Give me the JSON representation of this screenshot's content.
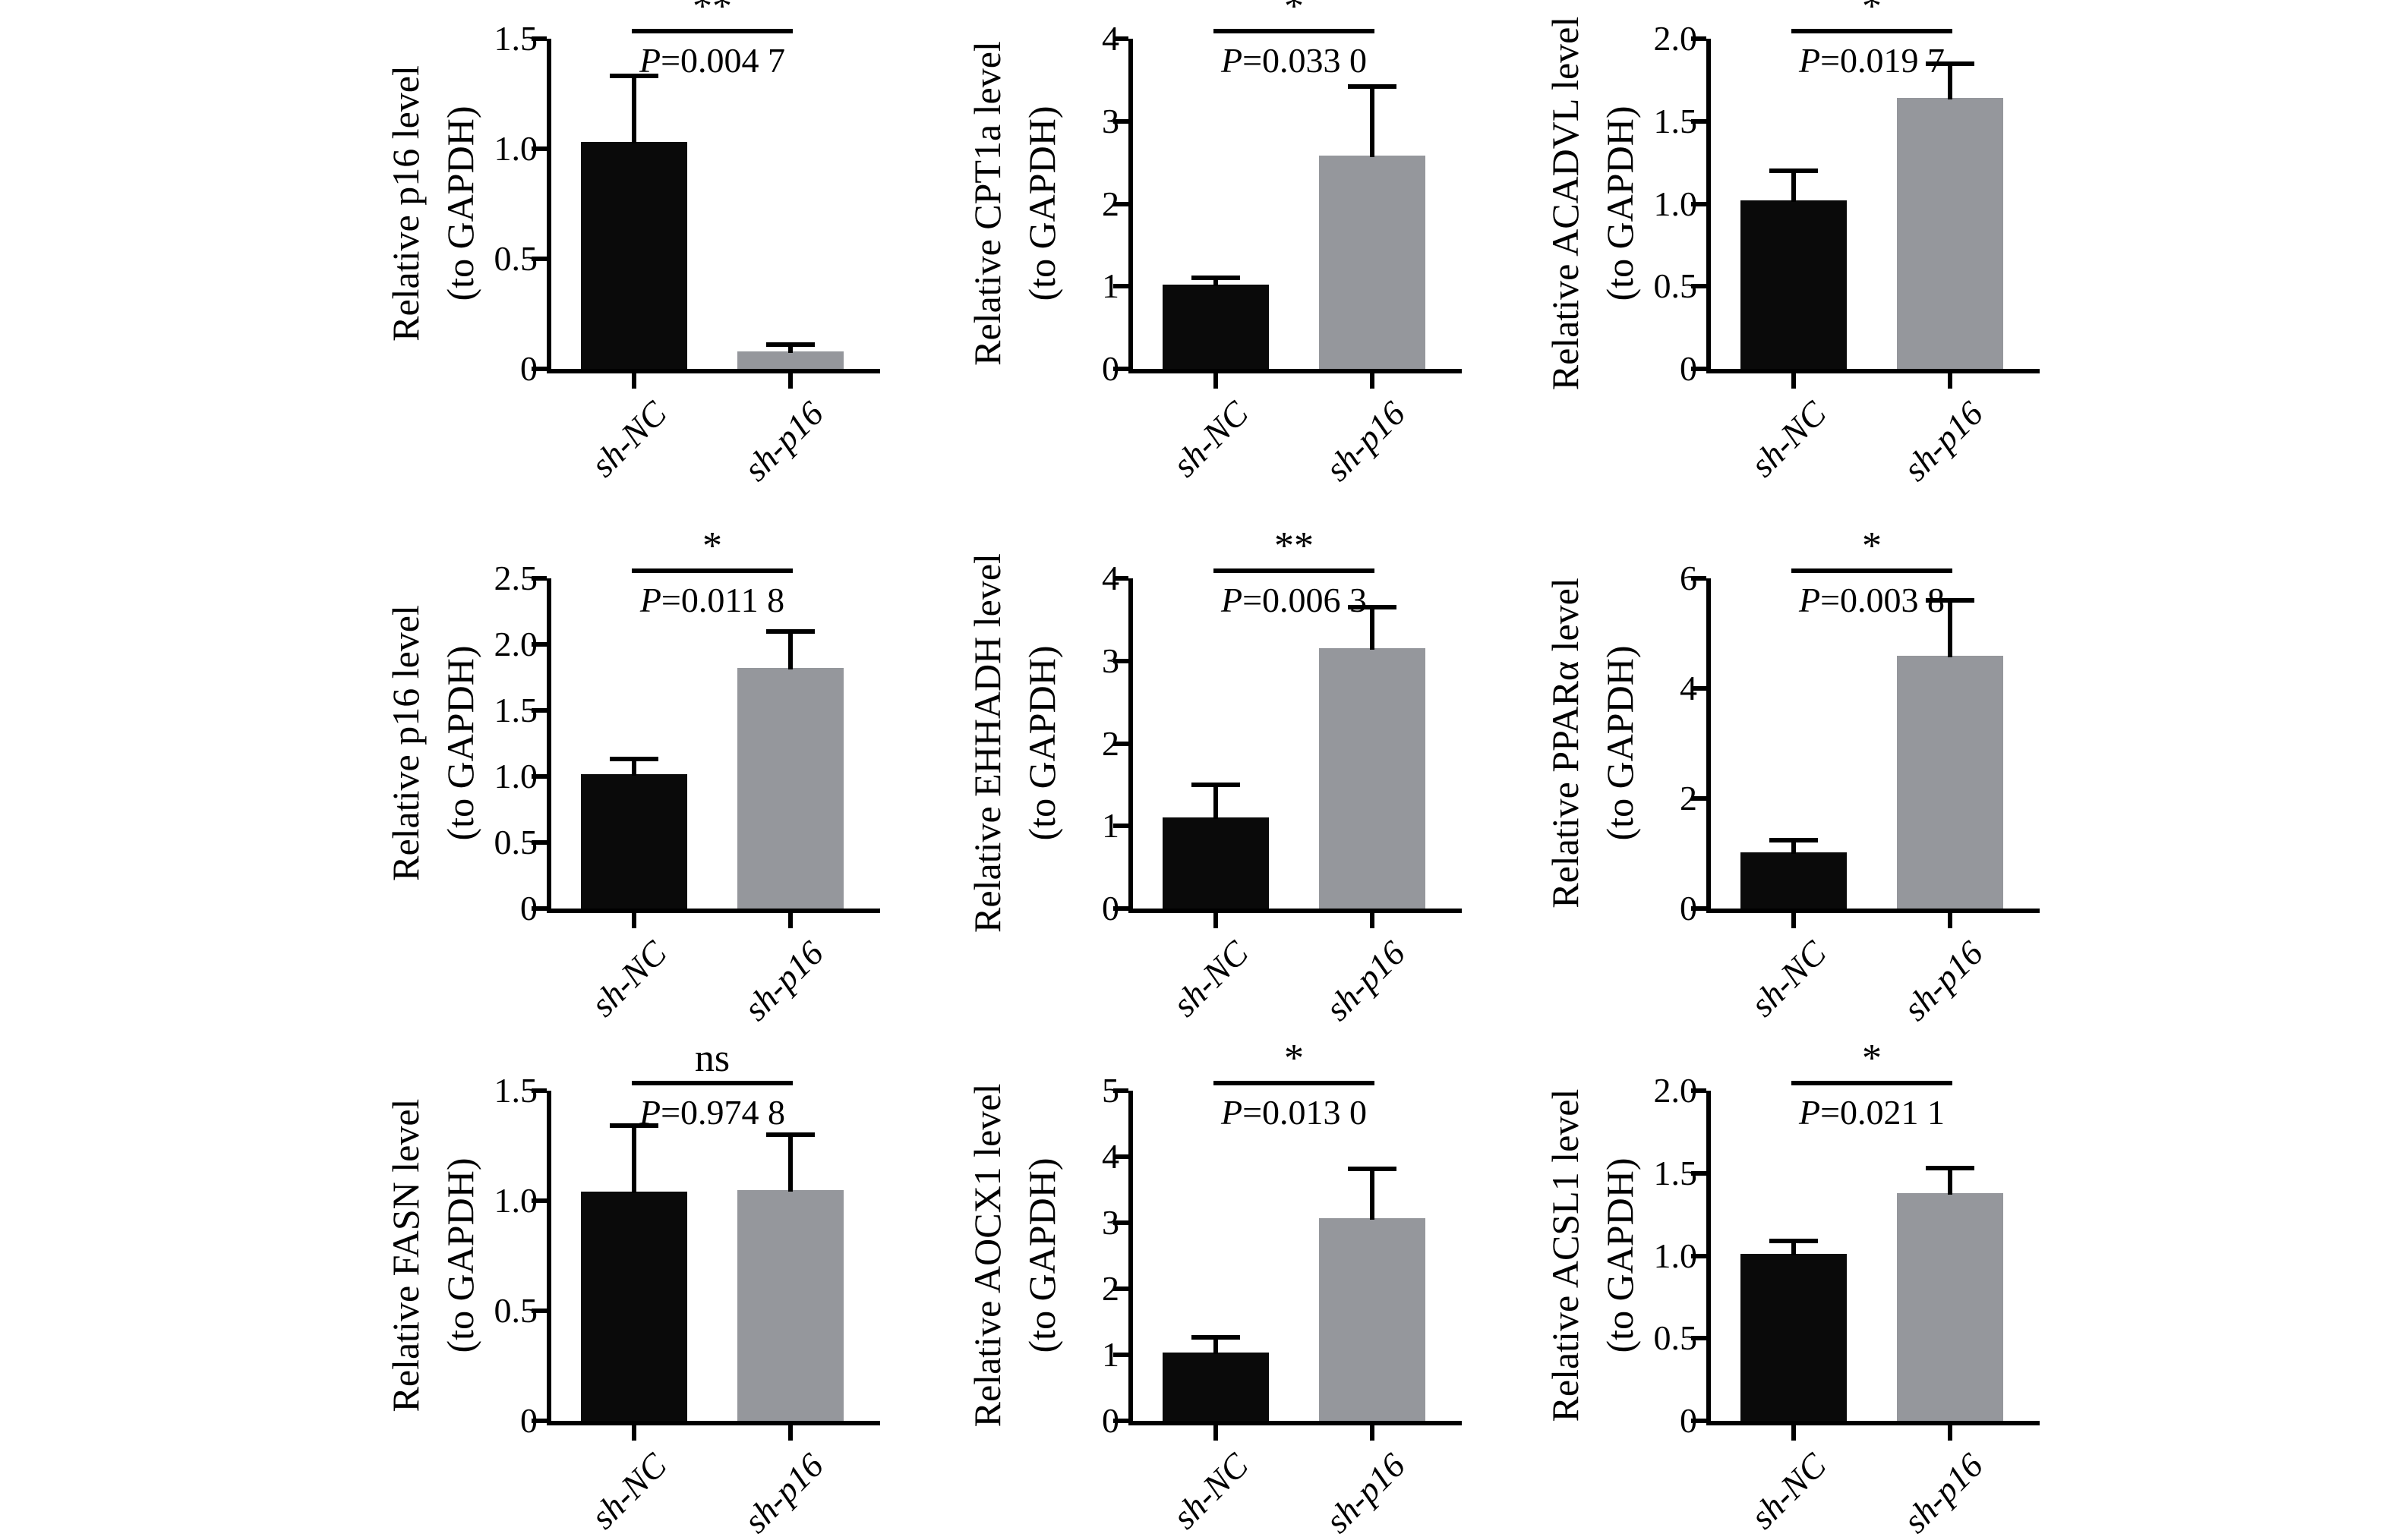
{
  "figure": {
    "description": "3x3 grid of qPCR bar charts comparing sh-NC and sh-p16 groups",
    "background": "#ffffff"
  },
  "colors": {
    "bar_sh_nc": "#0a0a0a",
    "bar_sh_p16": "#95979c",
    "axis": "#000000",
    "text": "#000000"
  },
  "chart_data": [
    {
      "type": "bar",
      "gene": "p16",
      "ylabel_line1": "Relative p16 level",
      "ylabel_line2": "(to GAPDH)",
      "significance": "**",
      "p_prefix": "P",
      "p_value": "=0.004 7",
      "categories": [
        "sh-NC",
        "sh-p16"
      ],
      "values": [
        1.03,
        0.08
      ],
      "errors_plus": [
        0.3,
        0.03
      ],
      "ylim": [
        0,
        1.5
      ],
      "grid": false,
      "legend": "none",
      "yticks": [
        {
          "v": 0,
          "label": "0"
        },
        {
          "v": 0.5,
          "label": "0.5"
        },
        {
          "v": 1,
          "label": "1.0"
        },
        {
          "v": 1.5,
          "label": "1.5"
        }
      ]
    },
    {
      "type": "bar",
      "gene": "CPT1a",
      "ylabel_line1": "Relative CPT1a level",
      "ylabel_line2": "(to GAPDH)",
      "significance": "*",
      "p_prefix": "P",
      "p_value": "=0.033 0",
      "categories": [
        "sh-NC",
        "sh-p16"
      ],
      "values": [
        1.02,
        2.58
      ],
      "errors_plus": [
        0.08,
        0.84
      ],
      "ylim": [
        0,
        4
      ],
      "grid": false,
      "legend": "none",
      "yticks": [
        {
          "v": 0,
          "label": "0"
        },
        {
          "v": 1,
          "label": "1"
        },
        {
          "v": 2,
          "label": "2"
        },
        {
          "v": 3,
          "label": "3"
        },
        {
          "v": 4,
          "label": "4"
        }
      ]
    },
    {
      "type": "bar",
      "gene": "ACADVL",
      "ylabel_line1": "Relative ACADVL level",
      "ylabel_line2": "(to GAPDH)",
      "significance": "*",
      "p_prefix": "P",
      "p_value": "=0.019 7",
      "categories": [
        "sh-NC",
        "sh-p16"
      ],
      "values": [
        1.02,
        1.64
      ],
      "errors_plus": [
        0.18,
        0.21
      ],
      "ylim": [
        0,
        2
      ],
      "grid": false,
      "legend": "none",
      "yticks": [
        {
          "v": 0,
          "label": "0"
        },
        {
          "v": 0.5,
          "label": "0.5"
        },
        {
          "v": 1,
          "label": "1.0"
        },
        {
          "v": 1.5,
          "label": "1.5"
        },
        {
          "v": 2,
          "label": "2.0"
        }
      ]
    },
    {
      "type": "bar",
      "gene": "p16",
      "ylabel_line1": "Relative p16 level",
      "ylabel_line2": "(to GAPDH)",
      "significance": "*",
      "p_prefix": "P",
      "p_value": "=0.011 8",
      "categories": [
        "sh-NC",
        "sh-p16"
      ],
      "values": [
        1.02,
        1.82
      ],
      "errors_plus": [
        0.11,
        0.28
      ],
      "ylim": [
        0,
        2.5
      ],
      "grid": false,
      "legend": "none",
      "yticks": [
        {
          "v": 0,
          "label": "0"
        },
        {
          "v": 0.5,
          "label": "0.5"
        },
        {
          "v": 1,
          "label": "1.0"
        },
        {
          "v": 1.5,
          "label": "1.5"
        },
        {
          "v": 2,
          "label": "2.0"
        },
        {
          "v": 2.5,
          "label": "2.5"
        }
      ]
    },
    {
      "type": "bar",
      "gene": "EHHADH",
      "ylabel_line1": "Relative EHHADH level",
      "ylabel_line2": "(to GAPDH)",
      "significance": "**",
      "p_prefix": "P",
      "p_value": "=0.006 3",
      "categories": [
        "sh-NC",
        "sh-p16"
      ],
      "values": [
        1.1,
        3.15
      ],
      "errors_plus": [
        0.4,
        0.5
      ],
      "ylim": [
        0,
        4
      ],
      "grid": false,
      "legend": "none",
      "yticks": [
        {
          "v": 0,
          "label": "0"
        },
        {
          "v": 1,
          "label": "1"
        },
        {
          "v": 2,
          "label": "2"
        },
        {
          "v": 3,
          "label": "3"
        },
        {
          "v": 4,
          "label": "4"
        }
      ]
    },
    {
      "type": "bar",
      "gene": "PPARα",
      "ylabel_line1": "Relative PPARα level",
      "ylabel_line2": "(to GAPDH)",
      "significance": "*",
      "p_prefix": "P",
      "p_value": "=0.003 8",
      "categories": [
        "sh-NC",
        "sh-p16"
      ],
      "values": [
        1.02,
        4.6
      ],
      "errors_plus": [
        0.22,
        1.0
      ],
      "ylim": [
        0,
        6
      ],
      "grid": false,
      "legend": "none",
      "yticks": [
        {
          "v": 0,
          "label": "0"
        },
        {
          "v": 2,
          "label": "2"
        },
        {
          "v": 4,
          "label": "4"
        },
        {
          "v": 6,
          "label": "6"
        }
      ]
    },
    {
      "type": "bar",
      "gene": "FASN",
      "ylabel_line1": "Relative FASN level",
      "ylabel_line2": "(to GAPDH)",
      "significance": "ns",
      "p_prefix": "P",
      "p_value": "=0.974 8",
      "categories": [
        "sh-NC",
        "sh-p16"
      ],
      "values": [
        1.04,
        1.05
      ],
      "errors_plus": [
        0.3,
        0.25
      ],
      "ylim": [
        0,
        1.5
      ],
      "grid": false,
      "legend": "none",
      "yticks": [
        {
          "v": 0,
          "label": "0"
        },
        {
          "v": 0.5,
          "label": "0.5"
        },
        {
          "v": 1,
          "label": "1.0"
        },
        {
          "v": 1.5,
          "label": "1.5"
        }
      ]
    },
    {
      "type": "bar",
      "gene": "AOCX1",
      "ylabel_line1": "Relative AOCX1 level",
      "ylabel_line2": "(to GAPDH)",
      "significance": "*",
      "p_prefix": "P",
      "p_value": "=0.013 0",
      "categories": [
        "sh-NC",
        "sh-p16"
      ],
      "values": [
        1.03,
        3.07
      ],
      "errors_plus": [
        0.24,
        0.75
      ],
      "ylim": [
        0,
        5
      ],
      "grid": false,
      "legend": "none",
      "yticks": [
        {
          "v": 0,
          "label": "0"
        },
        {
          "v": 1,
          "label": "1"
        },
        {
          "v": 2,
          "label": "2"
        },
        {
          "v": 3,
          "label": "3"
        },
        {
          "v": 4,
          "label": "4"
        },
        {
          "v": 5,
          "label": "5"
        }
      ]
    },
    {
      "type": "bar",
      "gene": "ACSL1",
      "ylabel_line1": "Relative ACSL1 level",
      "ylabel_line2": "(to GAPDH)",
      "significance": "*",
      "p_prefix": "P",
      "p_value": "=0.021 1",
      "categories": [
        "sh-NC",
        "sh-p16"
      ],
      "values": [
        1.01,
        1.38
      ],
      "errors_plus": [
        0.08,
        0.15
      ],
      "ylim": [
        0,
        2
      ],
      "grid": false,
      "legend": "none",
      "yticks": [
        {
          "v": 0,
          "label": "0"
        },
        {
          "v": 0.5,
          "label": "0.5"
        },
        {
          "v": 1,
          "label": "1.0"
        },
        {
          "v": 1.5,
          "label": "1.5"
        },
        {
          "v": 2,
          "label": "2.0"
        }
      ]
    }
  ],
  "layout": {
    "col_lefts": [
      476,
      1242,
      2003
    ],
    "row_tops": [
      -32,
      679,
      1354
    ]
  }
}
